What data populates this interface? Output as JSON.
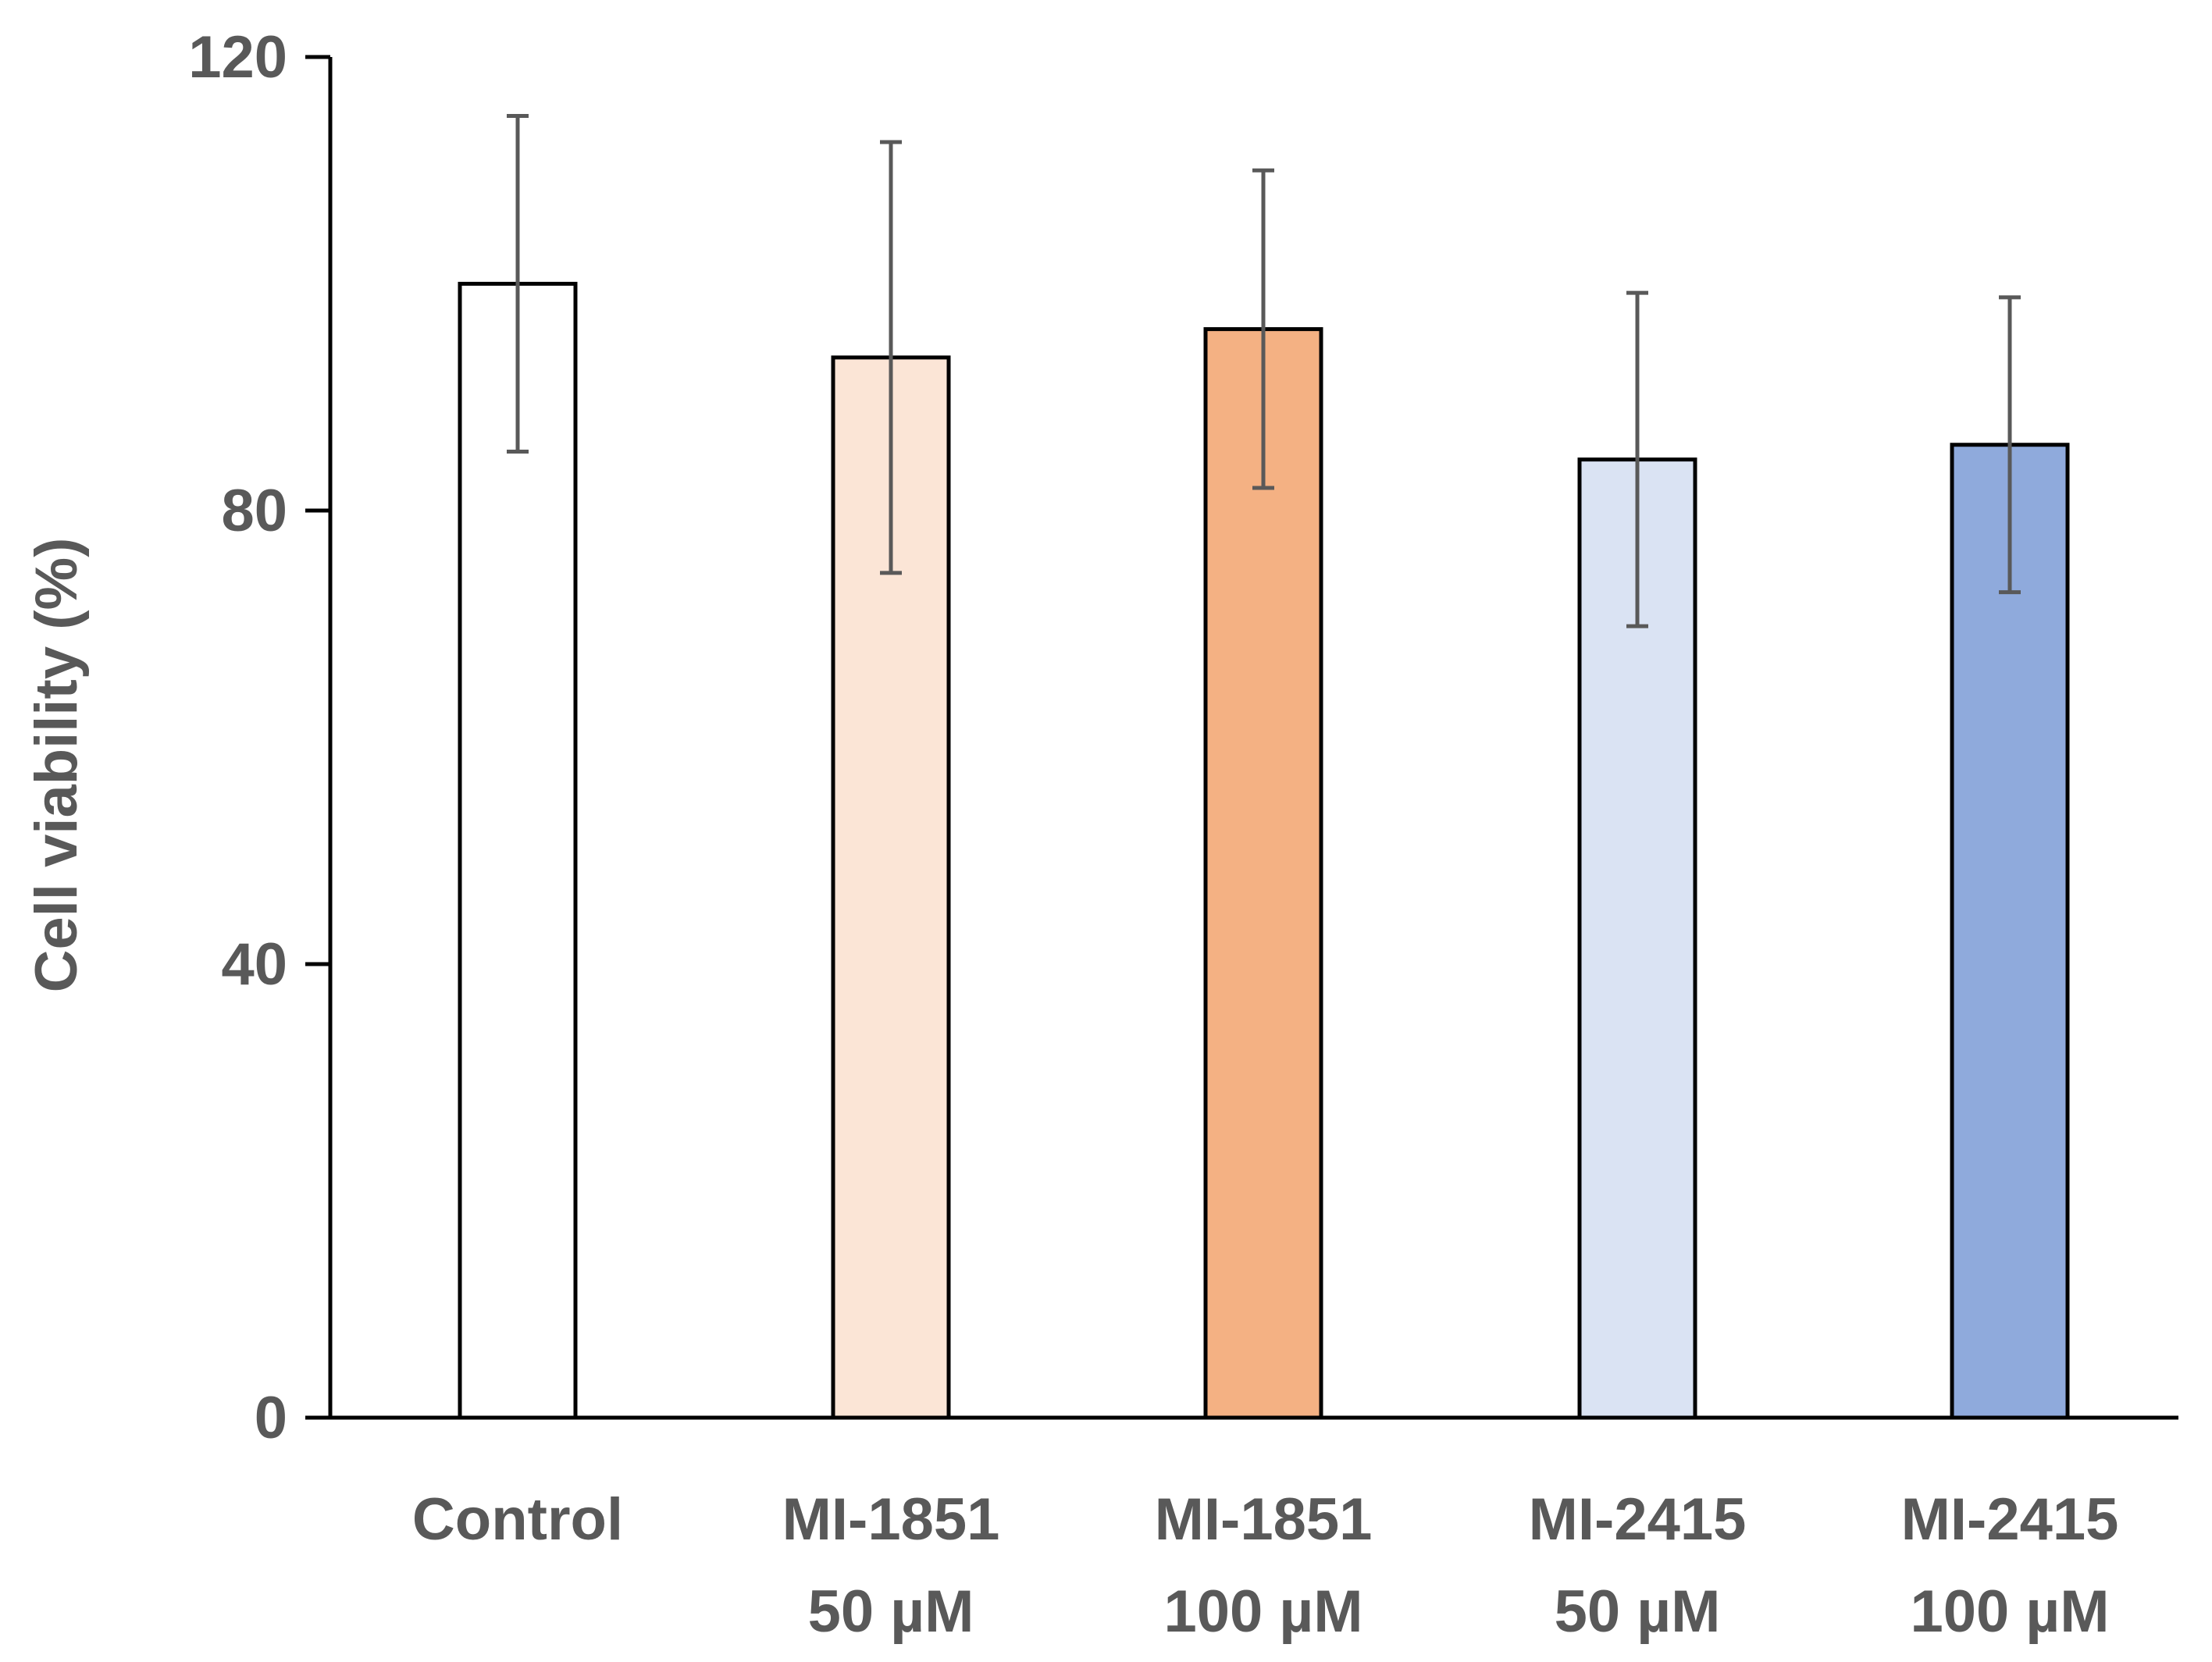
{
  "chart_data": {
    "type": "bar",
    "title": "",
    "xlabel": "",
    "ylabel": "Cell viability (%)",
    "ylim": [
      0,
      120
    ],
    "yticks": [
      "0",
      "40",
      "80",
      "120"
    ],
    "categories": [
      [
        "Control"
      ],
      [
        "MI-1851",
        "50 µM"
      ],
      [
        "MI-1851",
        "100 µM"
      ],
      [
        "MI-2415",
        "50 µM"
      ],
      [
        "MI-2415",
        "100 µM"
      ]
    ],
    "values": [
      100,
      93.5,
      96,
      84.5,
      85.8
    ],
    "error_low": [
      85.2,
      74.5,
      82,
      69.8,
      72.8
    ],
    "error_high": [
      114.8,
      112.5,
      110,
      99.2,
      98.8
    ],
    "colors": [
      "#ffffff",
      "#fbe5d6",
      "#f4b183",
      "#dae3f3",
      "#8faadc"
    ],
    "grid": false,
    "legend": "none"
  }
}
